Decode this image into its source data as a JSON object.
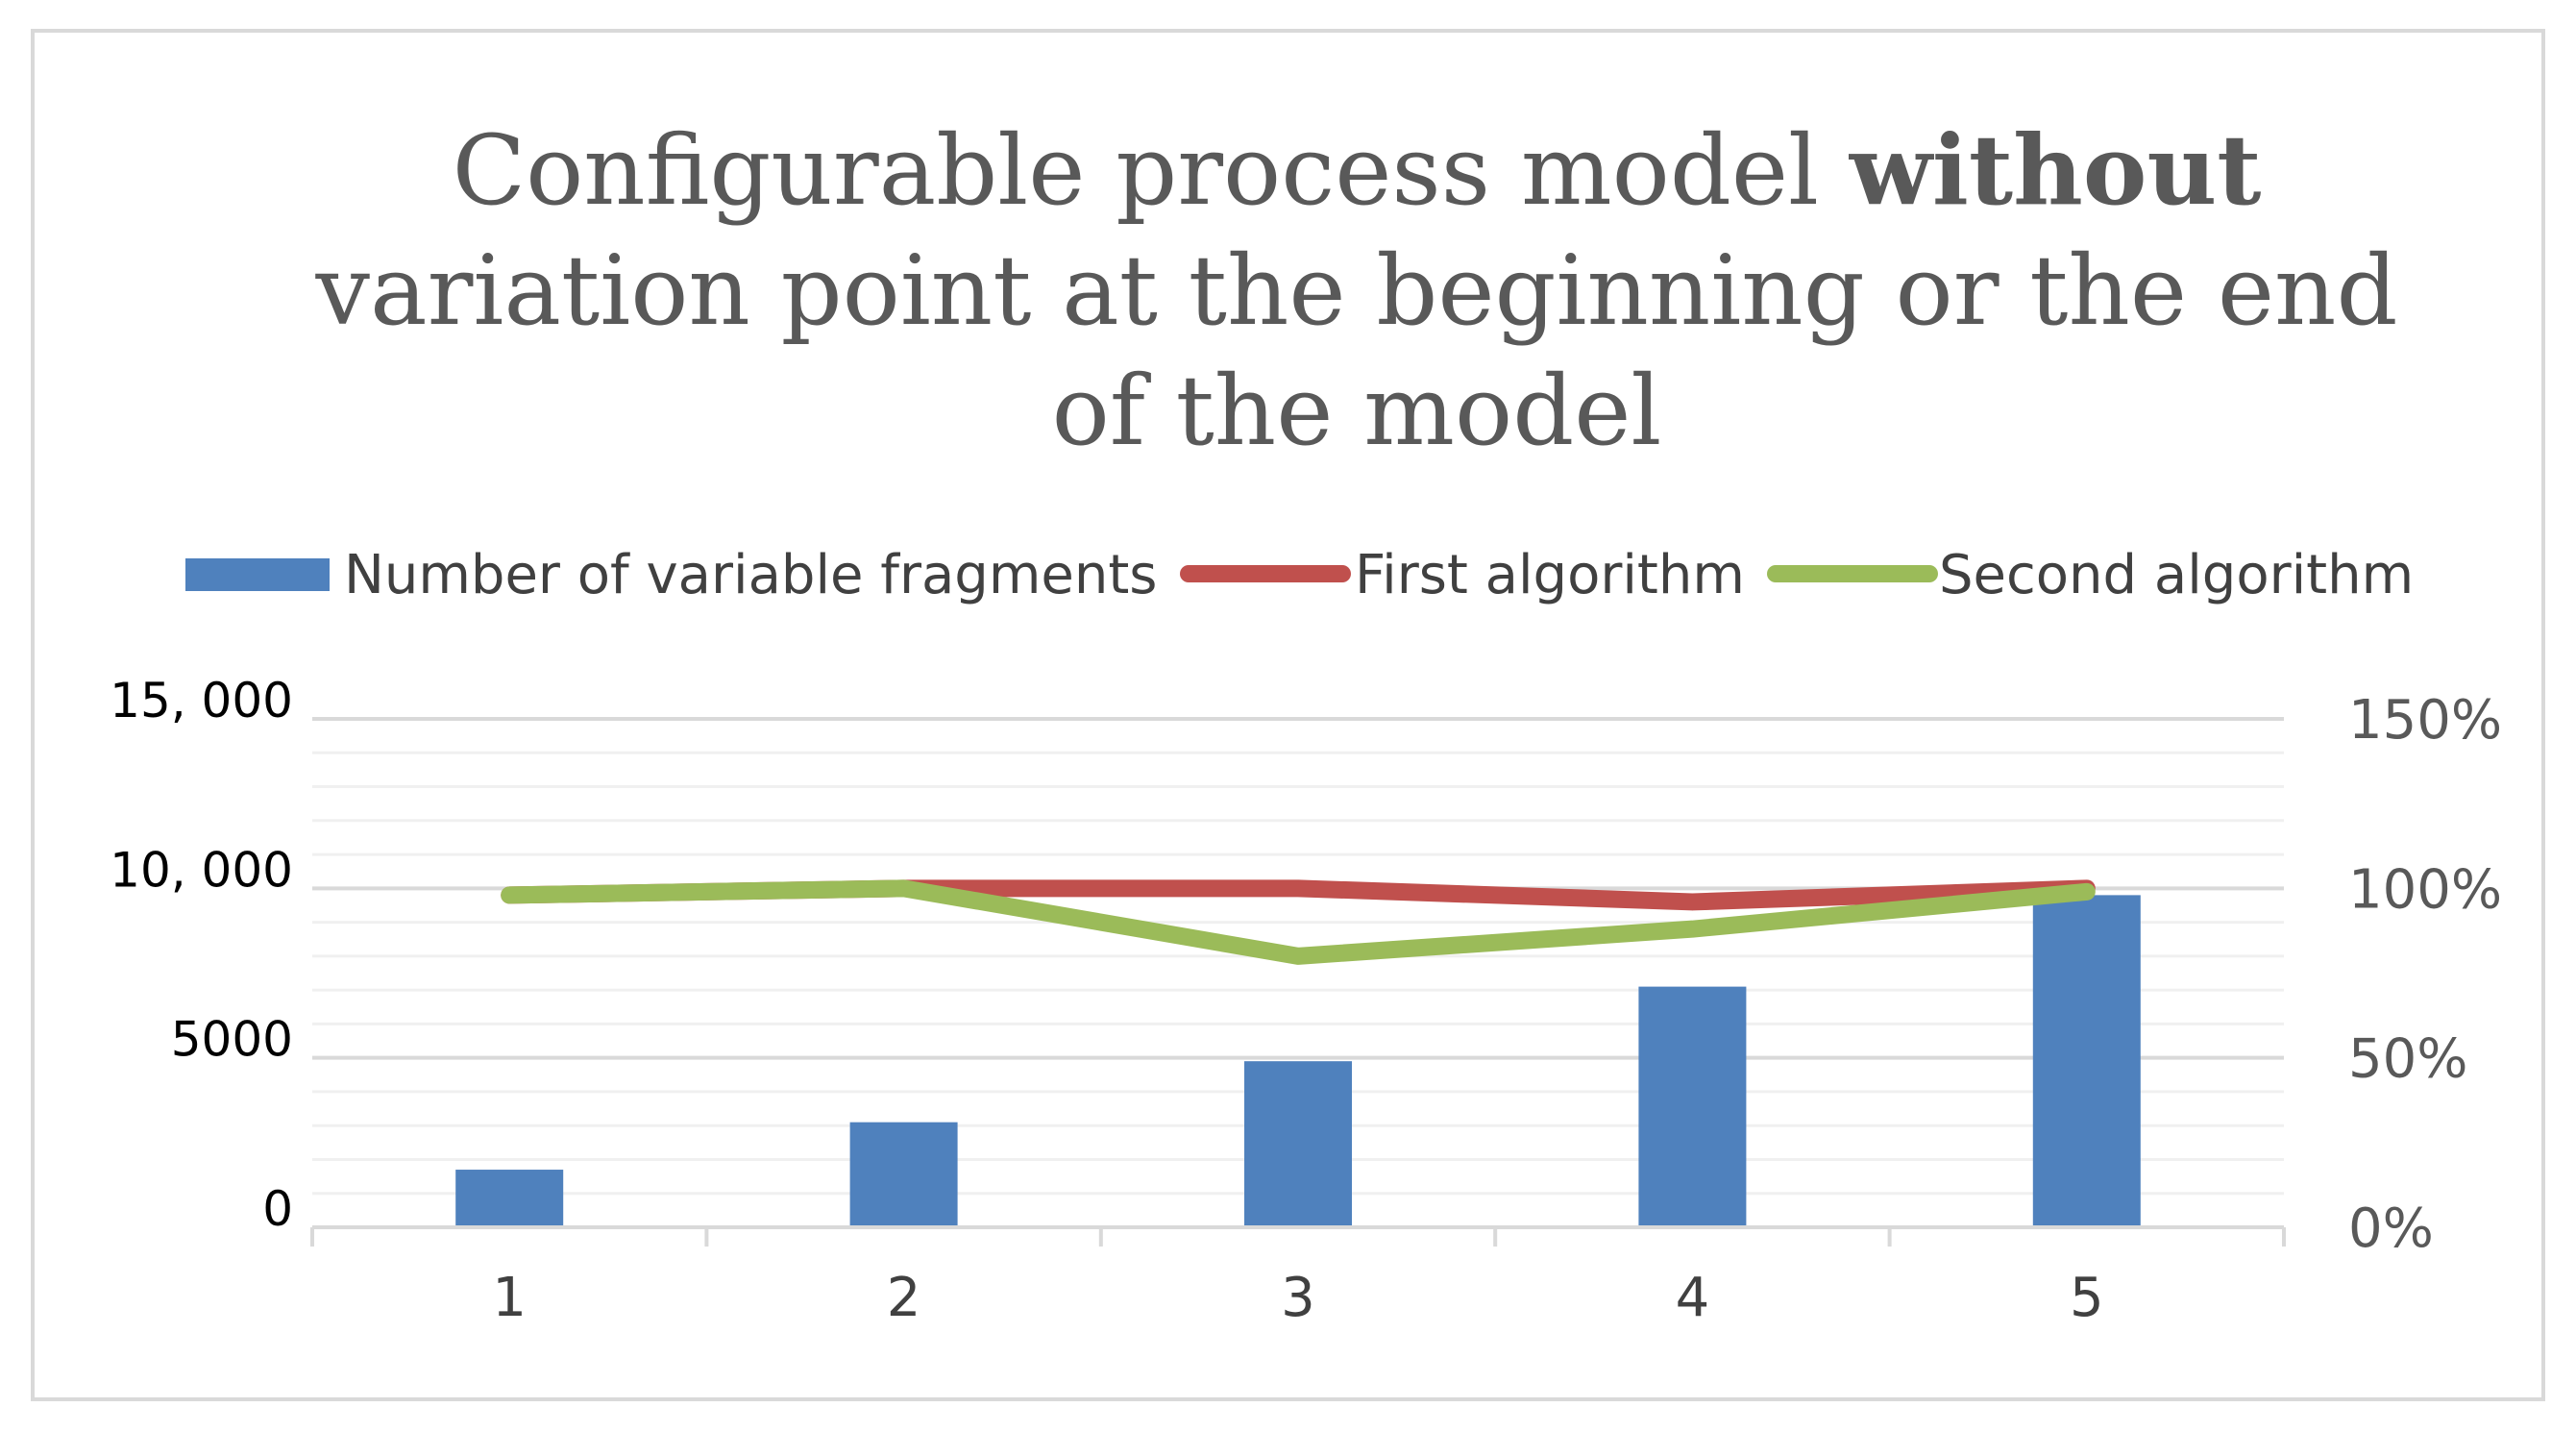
{
  "chart_data": {
    "type": "bar",
    "title_parts": {
      "line1_regular": "Configurable process model ",
      "line1_bold": "without",
      "line2": "variation point at the beginning or the end",
      "line3": "of the model"
    },
    "categories": [
      "1",
      "2",
      "3",
      "4",
      "5"
    ],
    "series": [
      {
        "name": "Number of variable fragments",
        "kind": "bar",
        "axis": "left",
        "color": "#4f81bd",
        "values": [
          1700,
          3100,
          4900,
          7100,
          9800
        ]
      },
      {
        "name": "First algorithm",
        "kind": "line",
        "axis": "right",
        "color": "#c0504d",
        "values": [
          0.98,
          1.0,
          1.0,
          0.96,
          1.0
        ]
      },
      {
        "name": "Second algorithm",
        "kind": "line",
        "axis": "right",
        "color": "#9bbb59",
        "values": [
          0.98,
          1.0,
          0.8,
          0.88,
          0.99
        ]
      }
    ],
    "y_left": {
      "ylim": [
        0,
        15000
      ],
      "ticks": [
        {
          "value": 0,
          "label": "0"
        },
        {
          "value": 5000,
          "label": "5000"
        },
        {
          "value": 10000,
          "label": "10, 000"
        },
        {
          "value": 15000,
          "label": "15, 000"
        }
      ]
    },
    "y_right": {
      "ylim": [
        0,
        1.5
      ],
      "ticks": [
        {
          "value": 0,
          "label": "0%"
        },
        {
          "value": 0.5,
          "label": "50%"
        },
        {
          "value": 1.0,
          "label": "100%"
        },
        {
          "value": 1.5,
          "label": "150%"
        }
      ]
    },
    "minor_gridlines_per_major": 5,
    "grid": true,
    "legend_position": "top",
    "colors": {
      "major_grid": "#d9d9d9",
      "minor_grid": "#f0f0f0",
      "axis": "#d9d9d9"
    }
  }
}
